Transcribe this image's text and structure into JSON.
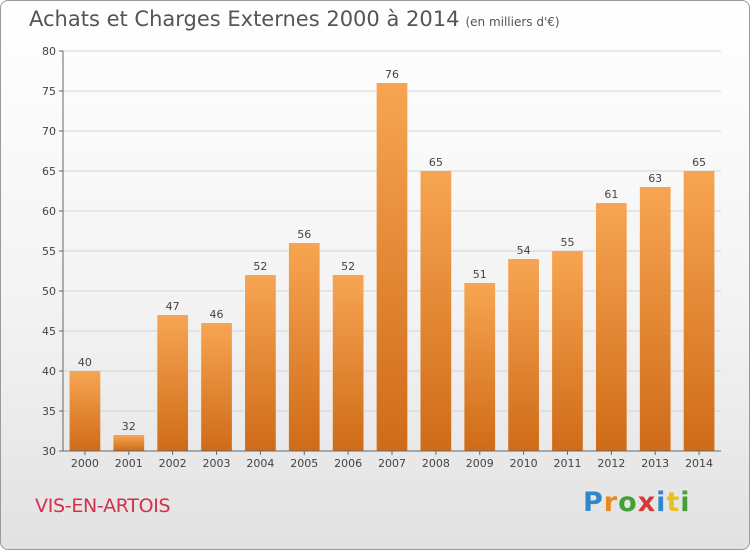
{
  "title": "Achats et Charges Externes 2000 à 2014",
  "unit_note": "(en milliers d'€)",
  "commune": "VIS-EN-ARTOIS",
  "logo_text": "Proxiti",
  "logo_colors": [
    "#2f86c8",
    "#e8891c",
    "#45a03a",
    "#d23a3a",
    "#2f86c8",
    "#e8c21c",
    "#45a03a"
  ],
  "colors": {
    "bar_top": "#f7a552",
    "bar_bottom": "#cf6b18",
    "commune": "#d2314a",
    "grid": "#d4d4d4"
  },
  "chart_data": {
    "type": "bar",
    "title": "Achats et Charges Externes 2000 à 2014",
    "categories": [
      "2000",
      "2001",
      "2002",
      "2003",
      "2004",
      "2005",
      "2006",
      "2007",
      "2008",
      "2009",
      "2010",
      "2011",
      "2012",
      "2013",
      "2014"
    ],
    "values": [
      40,
      32,
      47,
      46,
      52,
      56,
      52,
      76,
      65,
      51,
      54,
      55,
      61,
      63,
      65
    ],
    "ylim": [
      30,
      80
    ],
    "yticks": [
      30,
      35,
      40,
      45,
      50,
      55,
      60,
      65,
      70,
      75,
      80
    ],
    "grid": true,
    "legend": "none"
  }
}
